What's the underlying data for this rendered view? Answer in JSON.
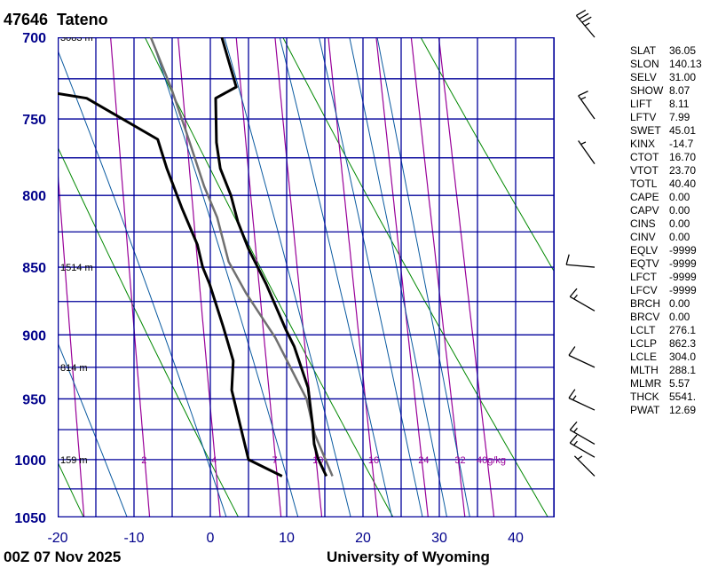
{
  "header": {
    "station_id": "47646",
    "station_name": "Tateno"
  },
  "footer": {
    "time": "00Z 07 Nov 2025",
    "source": "University of Wyoming"
  },
  "colors": {
    "grid": "#00009a",
    "dry_adiabat": "#008800",
    "moist_adiabat": "#0a5aa0",
    "mixing_ratio": "#990099",
    "profile": "#000000",
    "parcel": "#707070",
    "axis_label": "#00008b"
  },
  "indices": [
    {
      "label": "SLAT",
      "value": "36.05"
    },
    {
      "label": "SLON",
      "value": "140.13"
    },
    {
      "label": "SELV",
      "value": "31.00"
    },
    {
      "label": "SHOW",
      "value": "8.07"
    },
    {
      "label": "LIFT",
      "value": "8.11"
    },
    {
      "label": "LFTV",
      "value": "7.99"
    },
    {
      "label": "SWET",
      "value": "45.01"
    },
    {
      "label": "KINX",
      "value": "-14.7"
    },
    {
      "label": "CTOT",
      "value": "16.70"
    },
    {
      "label": "VTOT",
      "value": "23.70"
    },
    {
      "label": "TOTL",
      "value": "40.40"
    },
    {
      "label": "CAPE",
      "value": "0.00"
    },
    {
      "label": "CAPV",
      "value": "0.00"
    },
    {
      "label": "CINS",
      "value": "0.00"
    },
    {
      "label": "CINV",
      "value": "0.00"
    },
    {
      "label": "EQLV",
      "value": "-9999"
    },
    {
      "label": "EQTV",
      "value": "-9999"
    },
    {
      "label": "LFCT",
      "value": "-9999"
    },
    {
      "label": "LFCV",
      "value": "-9999"
    },
    {
      "label": "BRCH",
      "value": "0.00"
    },
    {
      "label": "BRCV",
      "value": "0.00"
    },
    {
      "label": "LCLT",
      "value": "276.1"
    },
    {
      "label": "LCLP",
      "value": "862.3"
    },
    {
      "label": "LCLE",
      "value": "304.0"
    },
    {
      "label": "MLTH",
      "value": "288.1"
    },
    {
      "label": "MLMR",
      "value": "5.57"
    },
    {
      "label": "THCK",
      "value": "5541."
    },
    {
      "label": "PWAT",
      "value": "12.69"
    }
  ],
  "chart_data": {
    "type": "line",
    "xlim": [
      -20,
      45
    ],
    "ylim_hpa": [
      1050,
      700
    ],
    "y_scale": "log",
    "grid": true,
    "pressure_ticks": [
      "700",
      "750",
      "800",
      "850",
      "900",
      "950",
      "1000",
      "1050"
    ],
    "pressure_gridlines": [
      700,
      725,
      750,
      775,
      800,
      825,
      850,
      875,
      900,
      925,
      950,
      975,
      1000,
      1025,
      1050
    ],
    "temperature_ticks": [
      "-20",
      "-10",
      "0",
      "10",
      "20",
      "30",
      "40"
    ],
    "temperature_gridline_step": 5,
    "height_labels": [
      {
        "p": 700,
        "text": "3083 m"
      },
      {
        "p": 850,
        "text": "1514 m"
      },
      {
        "p": 925,
        "text": "814 m"
      },
      {
        "p": 1000,
        "text": "159 m"
      }
    ],
    "mixing_ratio_lines_gkg": [
      1,
      2,
      4,
      7,
      10,
      16,
      24,
      32,
      40
    ],
    "mixing_ratio_labels": [
      "2",
      "4",
      "7",
      "10",
      "16",
      "24",
      "32",
      "40g/kg"
    ],
    "dry_adiabats_theta_k": [
      253,
      273,
      293,
      313,
      333
    ],
    "moist_adiabats_t_at_1050": [
      -10.9,
      2.1,
      11.5,
      18.4,
      23.8,
      27.8,
      31.0,
      34.0
    ],
    "temperature": [
      [
        700,
        1.5
      ],
      [
        730,
        3.4
      ],
      [
        737,
        0.7
      ],
      [
        765,
        0.8
      ],
      [
        782,
        1.3
      ],
      [
        800,
        2.7
      ],
      [
        818,
        3.6
      ],
      [
        837,
        5.0
      ],
      [
        862,
        7.3
      ],
      [
        896,
        9.9
      ],
      [
        909,
        11.0
      ],
      [
        941,
        12.8
      ],
      [
        971,
        13.4
      ],
      [
        987,
        13.6
      ],
      [
        999,
        14.1
      ],
      [
        1014,
        15.2
      ]
    ],
    "dewpoint": [
      [
        734,
        -20.0
      ],
      [
        737,
        -16.2
      ],
      [
        763,
        -6.9
      ],
      [
        782,
        -5.7
      ],
      [
        809,
        -3.7
      ],
      [
        834,
        -1.7
      ],
      [
        850,
        -1.0
      ],
      [
        862,
        -0.1
      ],
      [
        894,
        1.7
      ],
      [
        920,
        3.0
      ],
      [
        943,
        2.8
      ],
      [
        1000,
        5.0
      ],
      [
        1014,
        9.4
      ]
    ],
    "parcel": [
      [
        700,
        -7.8
      ],
      [
        731,
        -5.1
      ],
      [
        759,
        -3.1
      ],
      [
        794,
        -0.8
      ],
      [
        815,
        0.9
      ],
      [
        846,
        2.4
      ],
      [
        869,
        4.7
      ],
      [
        902,
        8.5
      ],
      [
        950,
        12.6
      ],
      [
        979,
        13.7
      ],
      [
        1014,
        16.0
      ]
    ],
    "winds": [
      {
        "p": 700,
        "dir": 320,
        "kt": 35
      },
      {
        "p": 750,
        "dir": 325,
        "kt": 15
      },
      {
        "p": 779,
        "dir": 325,
        "kt": 5
      },
      {
        "p": 850,
        "dir": 275,
        "kt": 10
      },
      {
        "p": 882,
        "dir": 300,
        "kt": 15
      },
      {
        "p": 925,
        "dir": 295,
        "kt": 10
      },
      {
        "p": 959,
        "dir": 295,
        "kt": 15
      },
      {
        "p": 987,
        "dir": 300,
        "kt": 15
      },
      {
        "p": 998,
        "dir": 300,
        "kt": 15
      },
      {
        "p": 1014,
        "dir": 315,
        "kt": 5
      }
    ]
  }
}
